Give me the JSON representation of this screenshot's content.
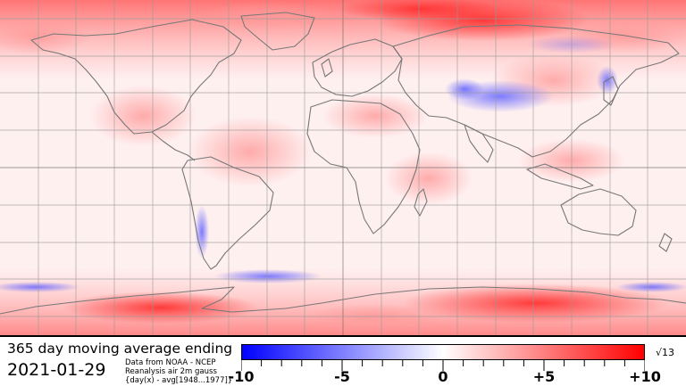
{
  "title": "365 day moving average ending",
  "date": "2021-01-29",
  "source_lines": [
    "Data from NOAA - NCEP",
    "Reanalysis air 2m gauss",
    "{day(x) - avg[1948...1977]}"
  ],
  "scale_note": "√13",
  "colorbar": {
    "min": -10,
    "max": 10,
    "labels": [
      "-10",
      "-5",
      "0",
      "+5",
      "+10"
    ],
    "label_values": [
      -10,
      -5,
      0,
      5,
      10
    ],
    "minor_tick_step": 1,
    "colors": {
      "cold": "#0000ff",
      "neutral": "#ffffff",
      "warm": "#ff0000"
    }
  },
  "map": {
    "projection": "equirectangular",
    "land_outline_color": "#777777",
    "grid_color": "#999999"
  }
}
